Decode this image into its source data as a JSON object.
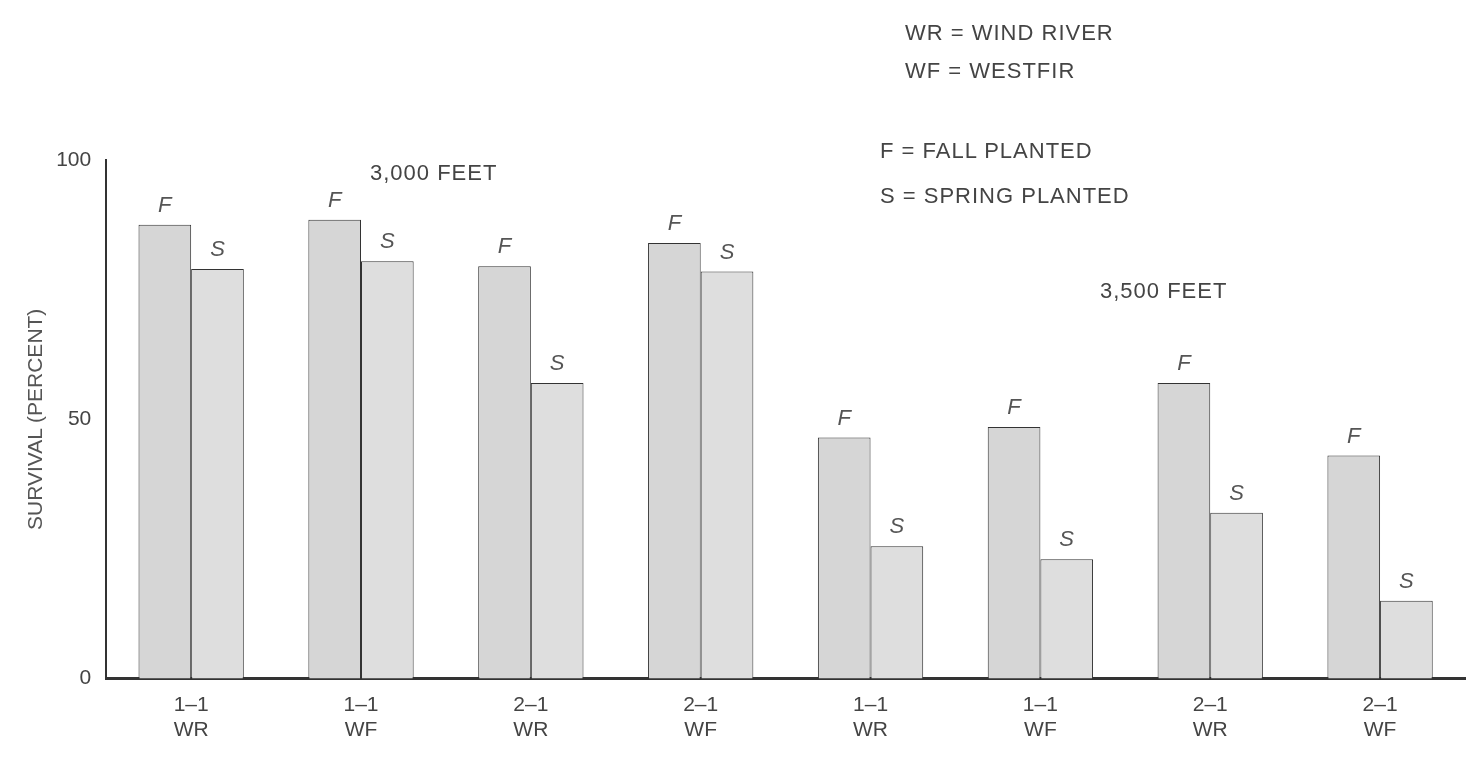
{
  "chart_data": {
    "type": "bar",
    "ylabel": "SURVIVAL (PERCENT)",
    "categories": [
      "1–1\nWR",
      "1–1\nWF",
      "2–1\nWR",
      "2–1\nWF",
      "1–1\nWR",
      "1–1\nWF",
      "2–1\nWR",
      "2–1\nWF"
    ],
    "series": [
      {
        "name": "F",
        "color": "#d6d6d6",
        "values": [
          87.5,
          88.5,
          79.5,
          84,
          46.5,
          48.5,
          57,
          43
        ]
      },
      {
        "name": "S",
        "color": "#dedede",
        "values": [
          79,
          80.5,
          57,
          78.5,
          25.5,
          23,
          32,
          15
        ]
      }
    ],
    "ylim": [
      0,
      100
    ],
    "yticks": [
      0,
      50,
      100
    ],
    "grid": false,
    "legend": false,
    "annotations": [
      "WR = WIND RIVER",
      "WF = WESTFIR",
      "F = FALL PLANTED",
      "S = SPRING PLANTED",
      "3,000 FEET",
      "3,500 FEET"
    ]
  }
}
